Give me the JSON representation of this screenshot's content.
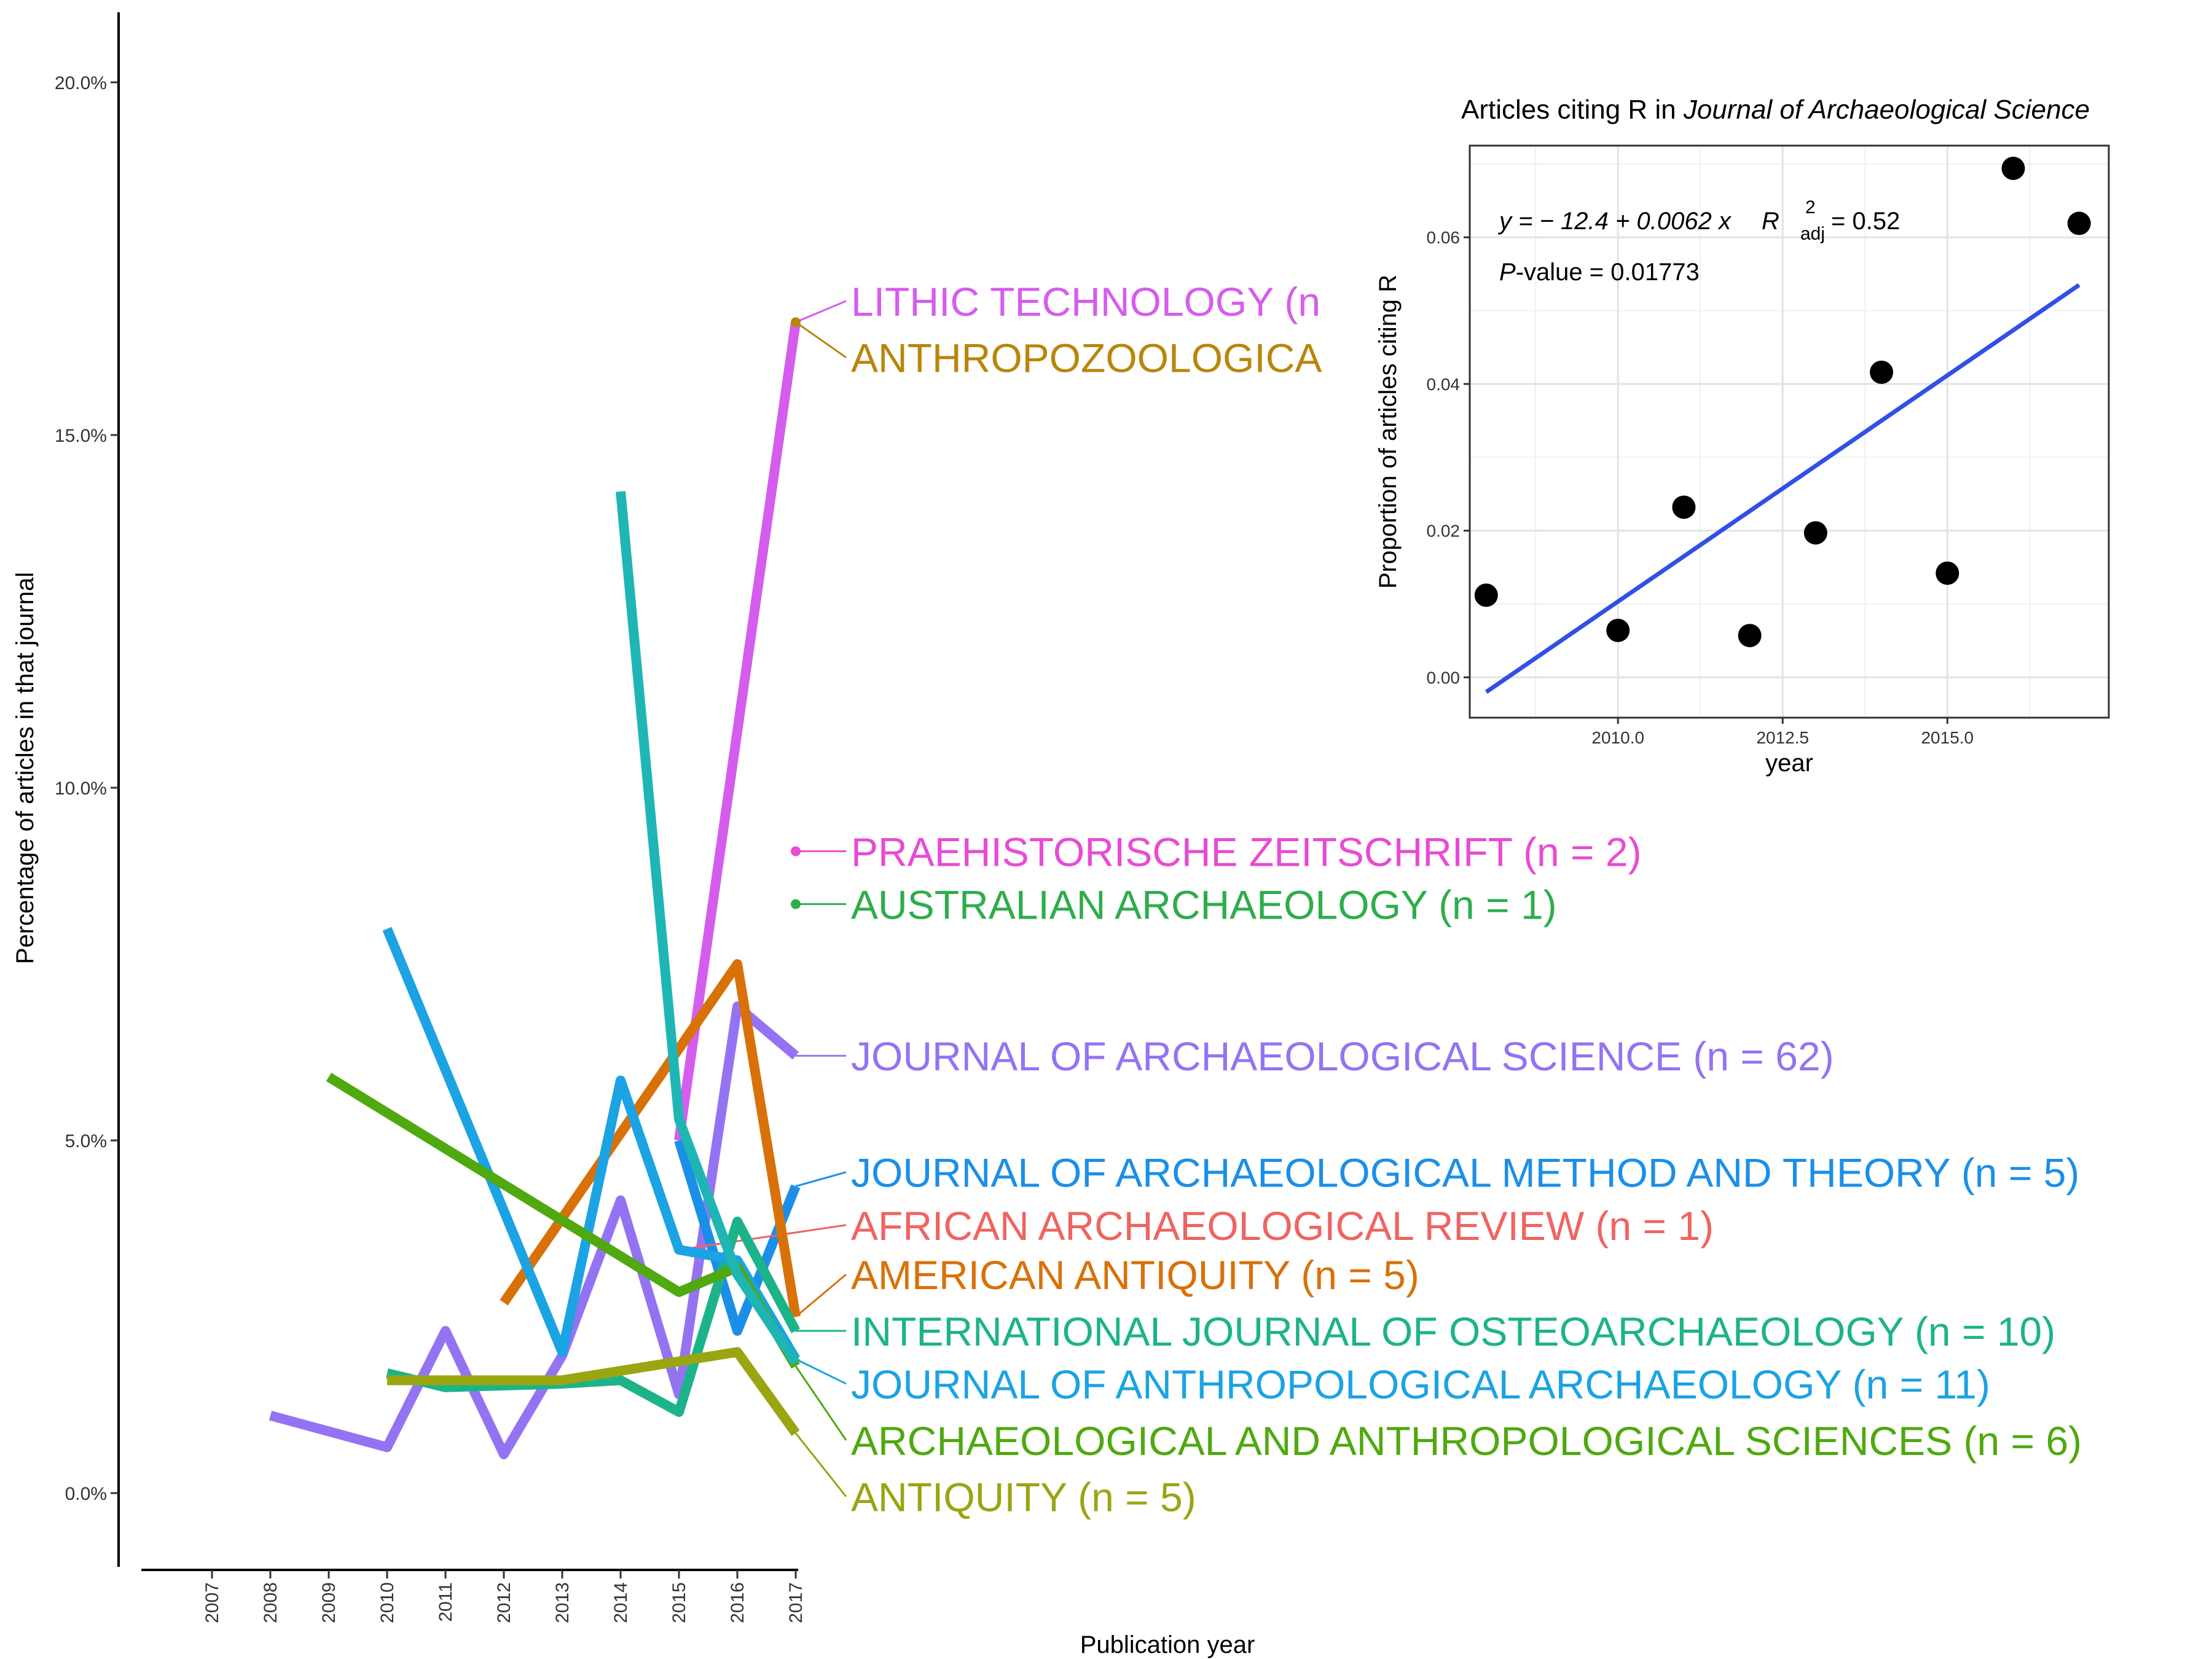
{
  "chart_data": [
    {
      "type": "line",
      "xlabel": "Publication year",
      "ylabel": "Percentage of articles in that journal",
      "categories": [
        "2007",
        "2008",
        "2009",
        "2010",
        "2011",
        "2012",
        "2013",
        "2014",
        "2015",
        "2016",
        "2017"
      ],
      "ylim": [
        -1,
        21
      ],
      "yticks": [
        0,
        5,
        10,
        15,
        20
      ],
      "ytick_labels": [
        "0.0%",
        "5.0%",
        "10.0%",
        "15.0%",
        "20.0%"
      ],
      "grid": false,
      "series": [
        {
          "name": "LITHIC TECHNOLOGY (n",
          "color": "#D55DEE",
          "points": [
            [
              2015,
              5.0
            ],
            [
              2017,
              16.6
            ]
          ],
          "label_y": 16.9
        },
        {
          "name": "ANTHROPOZOOLOGICA",
          "color": "#B8860B",
          "points": [
            [
              2017,
              16.6
            ]
          ],
          "label_y": 16.1
        },
        {
          "name": "PRAEHISTORISCHE ZEITSCHRIFT (n = 2)",
          "color": "#E84BD4",
          "points": [
            [
              2017,
              9.1
            ]
          ],
          "label_y": 9.1
        },
        {
          "name": "AUSTRALIAN ARCHAEOLOGY (n = 1)",
          "color": "#2EAD4B",
          "points": [
            [
              2017,
              8.35
            ]
          ],
          "label_y": 8.35
        },
        {
          "name": "JOURNAL OF ARCHAEOLOGICAL SCIENCE (n = 62)",
          "color": "#9473F3",
          "points": [
            [
              2008,
              1.1
            ],
            [
              2010,
              0.65
            ],
            [
              2011,
              2.3
            ],
            [
              2012,
              0.55
            ],
            [
              2013,
              1.95
            ],
            [
              2014,
              4.15
            ],
            [
              2015,
              1.4
            ],
            [
              2016,
              6.9
            ],
            [
              2017,
              6.2
            ]
          ],
          "label_y": 6.2
        },
        {
          "name": "JOURNAL OF ARCHAEOLOGICAL METHOD AND THEORY (n = 5)",
          "color": "#1B8FE8",
          "points": [
            [
              2015,
              5.0
            ],
            [
              2016,
              2.3
            ],
            [
              2017,
              4.35
            ]
          ],
          "label_y": 4.55
        },
        {
          "name": "AFRICAN ARCHAEOLOGICAL REVIEW (n = 1)",
          "color": "#EF6461",
          "points": [
            [
              2015,
              3.45
            ]
          ],
          "label_y": 3.8
        },
        {
          "name": "AMERICAN ANTIQUITY (n = 5)",
          "color": "#D97109",
          "points": [
            [
              2012,
              2.7
            ],
            [
              2016,
              7.5
            ],
            [
              2017,
              2.5
            ]
          ],
          "label_y": 3.1
        },
        {
          "name": "INTERNATIONAL JOURNAL OF OSTEOARCHAEOLOGY (n = 10)",
          "color": "#1CB38A",
          "points": [
            [
              2010,
              1.7
            ],
            [
              2011,
              1.5
            ],
            [
              2013,
              1.55
            ],
            [
              2014,
              1.6
            ],
            [
              2015,
              1.15
            ],
            [
              2016,
              3.85
            ],
            [
              2017,
              2.3
            ]
          ],
          "label_y": 2.3
        },
        {
          "name": "JOURNAL OF ANTHROPOLOGICAL ARCHAEOLOGY (n = 11)",
          "color": "#1BA3E3",
          "points": [
            [
              2010,
              8.0
            ],
            [
              2013,
              2.0
            ],
            [
              2014,
              5.85
            ],
            [
              2015,
              3.45
            ],
            [
              2016,
              3.3
            ],
            [
              2017,
              1.9
            ]
          ],
          "label_y": 1.55
        },
        {
          "name": "ARCHAEOLOGICAL AND ANTHROPOLOGICAL SCIENCES (n = 6)",
          "color": "#4FA90F",
          "points": [
            [
              2009,
              5.9
            ],
            [
              2015,
              2.85
            ],
            [
              2016,
              3.2
            ],
            [
              2017,
              1.8
            ]
          ],
          "label_y": 0.75
        },
        {
          "name": "ANTIQUITY (n = 5)",
          "color": "#9AA512",
          "points": [
            [
              2010,
              1.6
            ],
            [
              2013,
              1.6
            ],
            [
              2016,
              2.0
            ],
            [
              2017,
              0.85
            ]
          ],
          "label_y": -0.05
        },
        {
          "name": "",
          "color": "#1FB5B5",
          "points": [
            [
              2014,
              14.2
            ],
            [
              2015,
              5.3
            ],
            [
              2016,
              3.1
            ],
            [
              2017,
              1.85
            ]
          ]
        }
      ]
    },
    {
      "type": "scatter",
      "title_plain": "Articles citing R in ",
      "title_italic": "Journal of Archaeological Science",
      "xlabel": "year",
      "ylabel": "Proportion of articles citing R",
      "xlim": [
        2007.75,
        2017.45
      ],
      "ylim": [
        -0.0055,
        0.0725
      ],
      "xticks": [
        2010.0,
        2012.5,
        2015.0
      ],
      "xtick_labels": [
        "2010.0",
        "2012.5",
        "2015.0"
      ],
      "yticks": [
        0.0,
        0.02,
        0.04,
        0.06
      ],
      "ytick_labels": [
        "0.00",
        "0.02",
        "0.04",
        "0.06"
      ],
      "grid": true,
      "x": [
        2008,
        2010,
        2011,
        2012,
        2013,
        2014,
        2015,
        2016,
        2017
      ],
      "y": [
        0.0112,
        0.0064,
        0.0232,
        0.0057,
        0.0197,
        0.0416,
        0.0142,
        0.0694,
        0.0619
      ],
      "fit": {
        "intercept": -12.4,
        "slope": 0.0062,
        "x_start": 2008,
        "y_start": -0.002,
        "x_end": 2017,
        "y_end": 0.0535
      },
      "annotation": {
        "equation": "y = − 12.4 + 0.0062 x",
        "r2": "R",
        "r2_sup": "2",
        "r2_sub": "adj",
        "r2_value": " = 0.52",
        "p_italic": "P",
        "p_rest": "-value = 0.01773"
      }
    }
  ]
}
